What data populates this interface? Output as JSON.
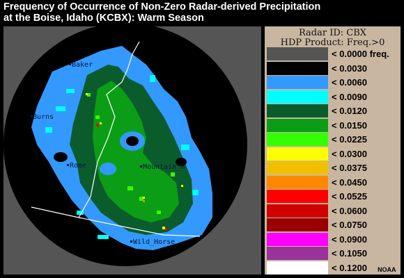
{
  "title_line1": "Frequency of Occurrence of Non-Zero Radar-derived Precipitation",
  "title_line2": "at the Boise, Idaho (KCBX): Warm Season",
  "legend": {
    "header_line1": "Radar ID: CBX",
    "header_line2": "HDP Product: Freq.>0",
    "rows": [
      {
        "label": "< 0.0000 freq.",
        "color": "#555555"
      },
      {
        "label": "< 0.0030",
        "color": "#000000"
      },
      {
        "label": "< 0.0060",
        "color": "#3399ff"
      },
      {
        "label": "< 0.0090",
        "color": "#00ffff"
      },
      {
        "label": "< 0.0120",
        "color": "#0b5c2c"
      },
      {
        "label": "< 0.0150",
        "color": "#0b9d16"
      },
      {
        "label": "< 0.0225",
        "color": "#33ff00"
      },
      {
        "label": "< 0.0300",
        "color": "#ffff00"
      },
      {
        "label": "< 0.0375",
        "color": "#f0c000"
      },
      {
        "label": "< 0.0450",
        "color": "#ff8800"
      },
      {
        "label": "< 0.0525",
        "color": "#ff0000"
      },
      {
        "label": "< 0.0600",
        "color": "#d10000"
      },
      {
        "label": "< 0.0750",
        "color": "#990000"
      },
      {
        "label": "< 0.0900",
        "color": "#ff00ff"
      },
      {
        "label": "< 0.1050",
        "color": "#993399"
      },
      {
        "label": "< 0.1200",
        "color": "#ffffff"
      }
    ]
  },
  "cities": [
    "Baker",
    "Burns",
    "Rome",
    "Mountain_H",
    "Wild_Horse"
  ],
  "credit": "NOAA"
}
